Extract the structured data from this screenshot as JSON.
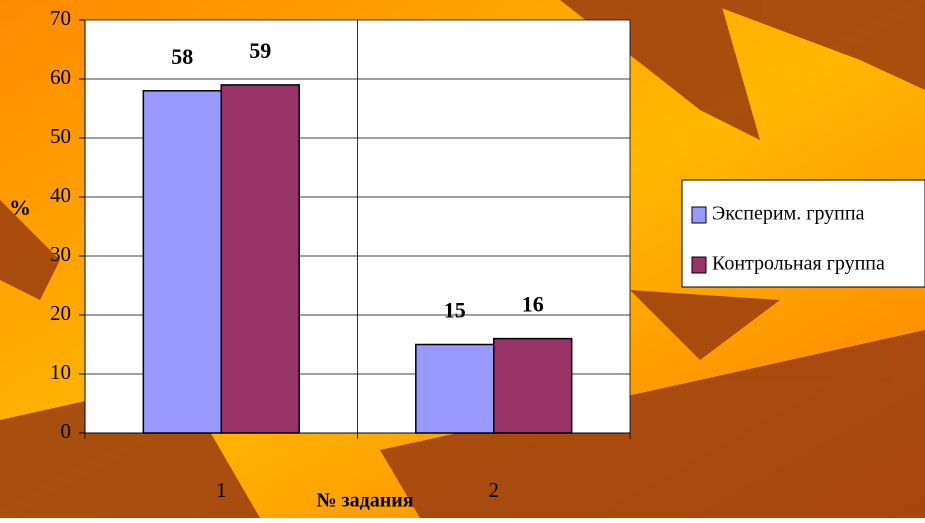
{
  "chart_data": {
    "type": "bar",
    "categories": [
      "1",
      "2"
    ],
    "series": [
      {
        "name": "Эксперим. группа",
        "color": "#9999ff",
        "values": [
          58,
          15
        ]
      },
      {
        "name": "Контрольная группа",
        "color": "#993366",
        "values": [
          59,
          16
        ]
      }
    ],
    "x_label": "№ задания",
    "y_label": "%",
    "ylim": [
      0,
      70
    ],
    "yticks": [
      0,
      10,
      20,
      30,
      40,
      50,
      60,
      70
    ],
    "grid": true,
    "legend": "right"
  }
}
